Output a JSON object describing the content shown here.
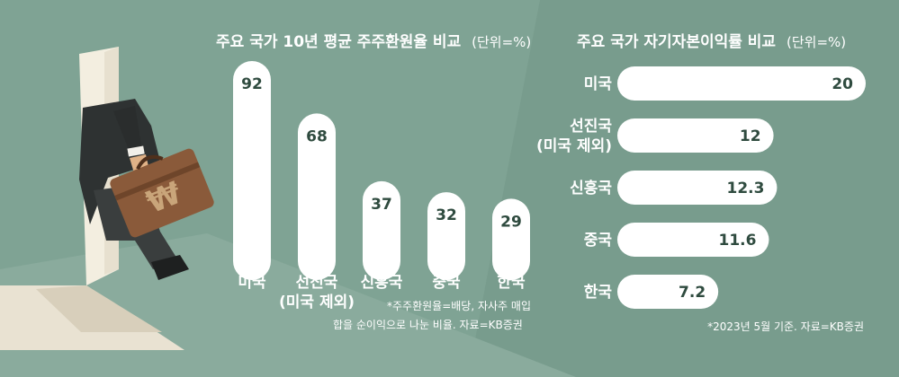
{
  "colors": {
    "background": "#7fa394",
    "panel_dark": "#6f9485",
    "bar": "#ffffff",
    "value_text": "#2f4b3f",
    "label_text": "#ffffff"
  },
  "chart_data": [
    {
      "type": "bar",
      "orientation": "vertical",
      "title": "주요 국가 10년 평균 주주환원율 비교",
      "unit": "(단위=%)",
      "categories": [
        "미국",
        "선진국\n(미국 제외)",
        "신흥국",
        "중국",
        "한국"
      ],
      "values": [
        92,
        68,
        37,
        32,
        29
      ],
      "value_labels": [
        "92",
        "68",
        "37",
        "32",
        "29"
      ],
      "notes": [
        "*주주환원율=배당, 자사주 매입",
        "합을 순이익으로 나눈 비율. 자료=KB증권"
      ]
    },
    {
      "type": "bar",
      "orientation": "horizontal",
      "title": "주요 국가 자기자본이익률 비교",
      "unit": "(단위=%)",
      "categories": [
        "미국",
        "선진국\n(미국 제외)",
        "신흥국",
        "중국",
        "한국"
      ],
      "values": [
        20,
        12,
        12.3,
        11.6,
        7.2
      ],
      "value_labels": [
        "20",
        "12",
        "12.3",
        "11.6",
        "7.2"
      ],
      "notes": [
        "*2023년 5월 기준. 자료=KB증권"
      ]
    }
  ]
}
